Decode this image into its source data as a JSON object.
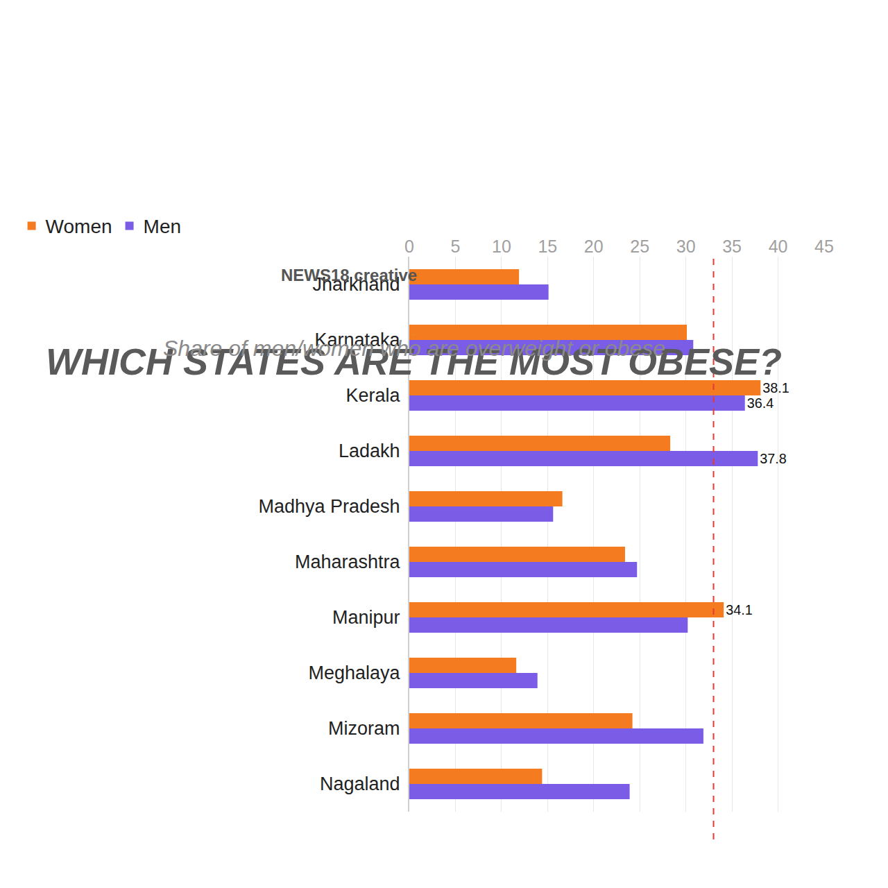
{
  "chart_data": {
    "type": "bar",
    "title": "WHICH STATES ARE THE MOST OBESE?",
    "subtitle": "Share of men/women who are overweight or obese",
    "orientation": "horizontal",
    "categories": [
      "Jharkhand",
      "Karnataka",
      "Kerala",
      "Ladakh",
      "Madhya Pradesh",
      "Maharashtra",
      "Manipur",
      "Meghalaya",
      "Mizoram",
      "Nagaland"
    ],
    "series": [
      {
        "name": "Women",
        "color": "#f47b20",
        "values": [
          11.9,
          30.1,
          38.1,
          28.3,
          16.6,
          23.4,
          34.1,
          11.6,
          24.2,
          14.4
        ],
        "value_labels": [
          null,
          null,
          "38.1",
          null,
          null,
          null,
          "34.1",
          null,
          null,
          null
        ]
      },
      {
        "name": "Men",
        "color": "#7b5ce6",
        "values": [
          15.1,
          30.8,
          36.4,
          37.8,
          15.6,
          24.7,
          30.2,
          13.9,
          31.9,
          23.9
        ],
        "value_labels": [
          null,
          null,
          "36.4",
          "37.8",
          null,
          null,
          null,
          null,
          null,
          null
        ]
      }
    ],
    "xlim": [
      0,
      45
    ],
    "xticks": [
      0,
      5,
      10,
      15,
      20,
      25,
      30,
      35,
      40,
      45
    ],
    "grid": true,
    "legend": "top left",
    "data_labels": true,
    "reference_line": {
      "value": 33,
      "color": "#e53935"
    },
    "annotations": [
      "NEWS18 creative"
    ]
  }
}
